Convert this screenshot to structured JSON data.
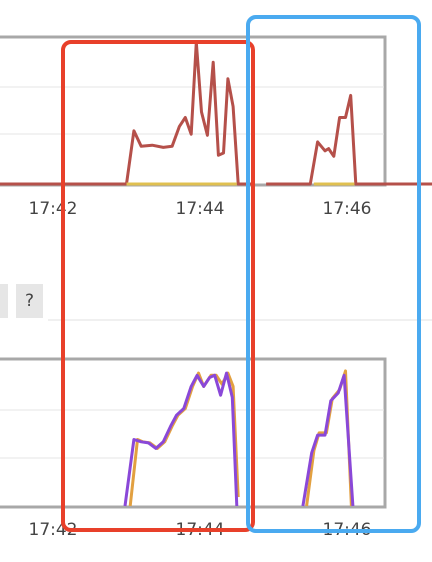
{
  "help_button": {
    "label": "?"
  },
  "highlight_colors": {
    "red_box": "#e8402a",
    "blue_box": "#4aaaf0"
  },
  "chart_data": [
    {
      "type": "line",
      "name": "top-chart",
      "x_ticks": [
        "17:42",
        "17:44",
        "17:46"
      ],
      "x_tick_minutes": [
        42,
        44,
        46
      ],
      "xlim": [
        40.7,
        47.2
      ],
      "ylim": [
        0,
        130
      ],
      "series": [
        {
          "name": "series-red",
          "color": "#b5504a",
          "segments": [
            [
              [
                40.7,
                0
              ],
              [
                43.0,
                0
              ],
              [
                43.1,
                48
              ],
              [
                43.2,
                34
              ],
              [
                43.35,
                35
              ],
              [
                43.5,
                33
              ],
              [
                43.62,
                34
              ],
              [
                43.72,
                52
              ],
              [
                43.8,
                60
              ],
              [
                43.88,
                45
              ],
              [
                43.95,
                128
              ],
              [
                44.02,
                65
              ],
              [
                44.1,
                44
              ],
              [
                44.18,
                110
              ],
              [
                44.25,
                26
              ],
              [
                44.32,
                28
              ],
              [
                44.38,
                95
              ],
              [
                44.45,
                70
              ],
              [
                44.52,
                0
              ],
              [
                44.7,
                0
              ]
            ],
            [
              [
                44.9,
                0
              ],
              [
                45.5,
                0
              ],
              [
                45.6,
                38
              ],
              [
                45.7,
                30
              ],
              [
                45.75,
                32
              ],
              [
                45.82,
                25
              ],
              [
                45.9,
                60
              ],
              [
                45.98,
                60
              ],
              [
                46.05,
                80
              ],
              [
                46.12,
                0
              ],
              [
                47.2,
                0
              ]
            ]
          ]
        },
        {
          "name": "series-yellow",
          "color": "#e0c050",
          "segments": [
            [
              [
                43.0,
                0
              ],
              [
                44.5,
                0
              ]
            ],
            [
              [
                45.55,
                0
              ],
              [
                46.1,
                0
              ]
            ]
          ]
        }
      ]
    },
    {
      "type": "line",
      "name": "bottom-chart",
      "x_ticks": [
        "17:42",
        "17:44",
        "17:46"
      ],
      "x_tick_minutes": [
        42,
        44,
        46
      ],
      "xlim": [
        40.7,
        47.2
      ],
      "ylim": [
        0,
        130
      ],
      "series": [
        {
          "name": "series-orange",
          "color": "#e2a040",
          "segments": [
            [
              [
                43.05,
                0
              ],
              [
                43.15,
                60
              ],
              [
                43.22,
                58
              ],
              [
                43.32,
                57
              ],
              [
                43.42,
                52
              ],
              [
                43.52,
                58
              ],
              [
                43.62,
                72
              ],
              [
                43.7,
                82
              ],
              [
                43.8,
                88
              ],
              [
                43.9,
                108
              ],
              [
                43.98,
                120
              ],
              [
                44.05,
                108
              ],
              [
                44.15,
                118
              ],
              [
                44.22,
                118
              ],
              [
                44.3,
                110
              ],
              [
                44.38,
                120
              ],
              [
                44.45,
                108
              ],
              [
                44.52,
                8
              ]
            ],
            [
              [
                45.45,
                0
              ],
              [
                45.55,
                50
              ],
              [
                45.62,
                66
              ],
              [
                45.72,
                66
              ],
              [
                45.8,
                97
              ],
              [
                45.9,
                105
              ],
              [
                45.98,
                122
              ],
              [
                46.06,
                0
              ]
            ]
          ]
        },
        {
          "name": "series-purple",
          "color": "#8a48d8",
          "segments": [
            [
              [
                42.98,
                0
              ],
              [
                43.1,
                60
              ],
              [
                43.2,
                58
              ],
              [
                43.3,
                57
              ],
              [
                43.4,
                52
              ],
              [
                43.5,
                58
              ],
              [
                43.6,
                72
              ],
              [
                43.68,
                82
              ],
              [
                43.78,
                88
              ],
              [
                43.88,
                108
              ],
              [
                43.96,
                118
              ],
              [
                44.05,
                108
              ],
              [
                44.13,
                116
              ],
              [
                44.2,
                118
              ],
              [
                44.28,
                100
              ],
              [
                44.36,
                120
              ],
              [
                44.44,
                98
              ],
              [
                44.5,
                0
              ]
            ],
            [
              [
                45.4,
                0
              ],
              [
                45.52,
                48
              ],
              [
                45.6,
                64
              ],
              [
                45.7,
                64
              ],
              [
                45.78,
                95
              ],
              [
                45.88,
                102
              ],
              [
                45.96,
                118
              ],
              [
                46.08,
                0
              ]
            ]
          ]
        }
      ]
    }
  ]
}
